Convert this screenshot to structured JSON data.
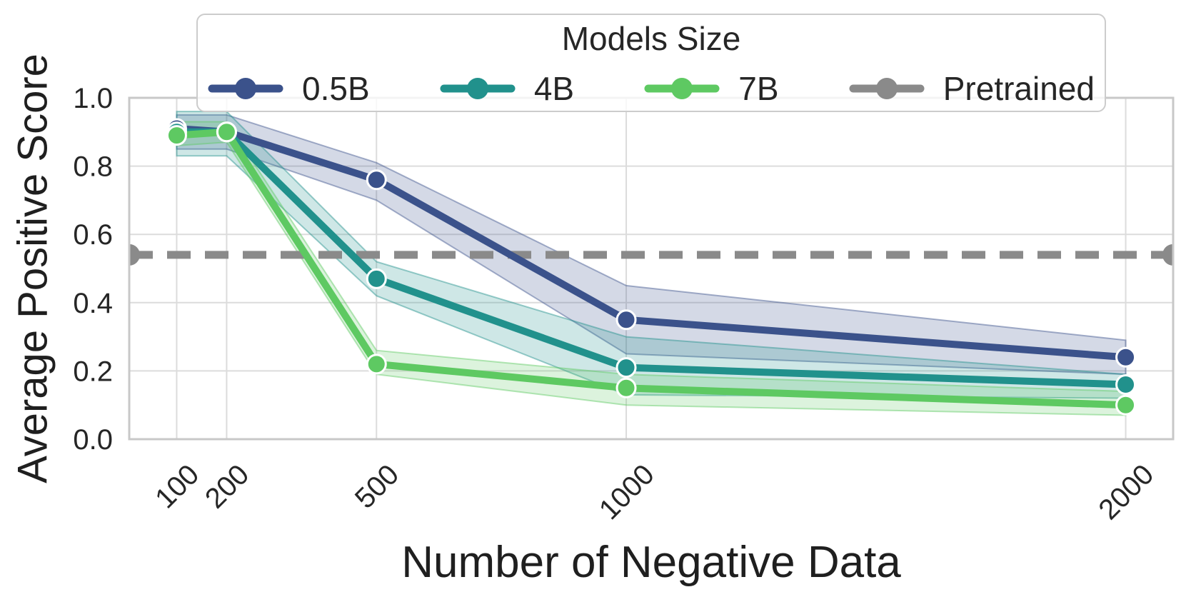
{
  "chart_data": {
    "type": "line",
    "xlabel": "Number of Negative Data",
    "ylabel": "Average Positive Score",
    "legend_title": "Models Size",
    "x": [
      100,
      200,
      500,
      1000,
      2000
    ],
    "x_tick_labels": [
      "100",
      "200",
      "500",
      "1000",
      "2000"
    ],
    "y_ticks": [
      0.0,
      0.2,
      0.4,
      0.6,
      0.8,
      1.0
    ],
    "y_tick_labels": [
      "0.0",
      "0.2",
      "0.4",
      "0.6",
      "0.8",
      "1.0"
    ],
    "xlim": [
      5,
      2095
    ],
    "ylim": [
      0,
      1.0
    ],
    "grid": true,
    "legend_position": "upper center, outside plot",
    "series": [
      {
        "name": "0.5B",
        "color": "#3b528b",
        "values": [
          0.91,
          0.9,
          0.76,
          0.35,
          0.24
        ],
        "ci_low": [
          0.85,
          0.85,
          0.7,
          0.25,
          0.19
        ],
        "ci_high": [
          0.95,
          0.95,
          0.81,
          0.45,
          0.29
        ]
      },
      {
        "name": "4B",
        "color": "#21918c",
        "values": [
          0.9,
          0.9,
          0.47,
          0.21,
          0.16
        ],
        "ci_low": [
          0.83,
          0.83,
          0.42,
          0.13,
          0.12
        ],
        "ci_high": [
          0.96,
          0.96,
          0.52,
          0.3,
          0.19
        ]
      },
      {
        "name": "7B",
        "color": "#5ec962",
        "values": [
          0.89,
          0.9,
          0.22,
          0.15,
          0.1
        ],
        "ci_low": [
          0.86,
          0.87,
          0.19,
          0.1,
          0.07
        ],
        "ci_high": [
          0.93,
          0.93,
          0.26,
          0.19,
          0.14
        ]
      }
    ],
    "baseline": {
      "name": "Pretrained",
      "value": 0.54,
      "color": "#8a8a8a",
      "style": "dashed"
    },
    "colors": {
      "grid": "#dcdcdc",
      "spine": "#c8c8c8",
      "tick_text": "#262626",
      "band_fill_opacity": 0.22,
      "band_edge_opacity": 0.45
    }
  }
}
